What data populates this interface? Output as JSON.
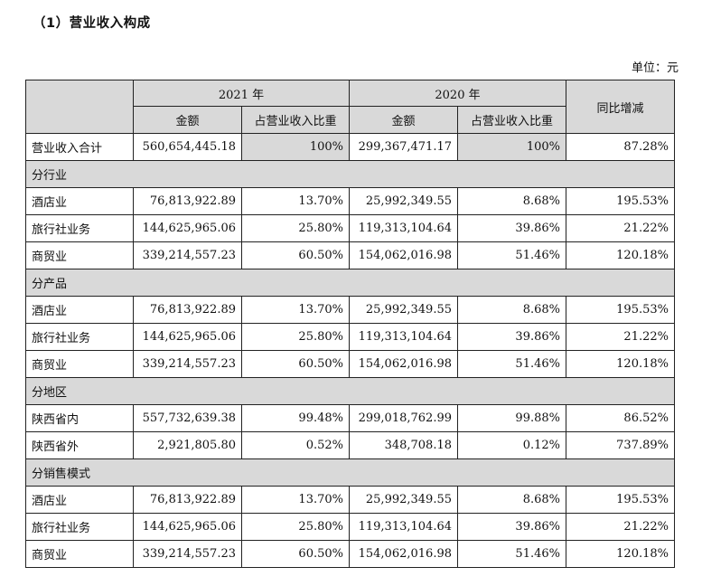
{
  "title": "（1）营业收入构成",
  "unit": "单位：元",
  "header": {
    "year_2021": "2021 年",
    "year_2020": "2020 年",
    "amount": "金额",
    "share": "占营业收入比重",
    "yoy": "同比增减"
  },
  "total": {
    "label": "营业收入合计",
    "amount_2021": "560,654,445.18",
    "share_2021": "100%",
    "amount_2020": "299,367,471.17",
    "share_2020": "100%",
    "yoy": "87.28%"
  },
  "sections": [
    {
      "title": "分行业",
      "rows": [
        {
          "label": "酒店业",
          "amount_2021": "76,813,922.89",
          "share_2021": "13.70%",
          "amount_2020": "25,992,349.55",
          "share_2020": "8.68%",
          "yoy": "195.53%"
        },
        {
          "label": "旅行社业务",
          "amount_2021": "144,625,965.06",
          "share_2021": "25.80%",
          "amount_2020": "119,313,104.64",
          "share_2020": "39.86%",
          "yoy": "21.22%"
        },
        {
          "label": "商贸业",
          "amount_2021": "339,214,557.23",
          "share_2021": "60.50%",
          "amount_2020": "154,062,016.98",
          "share_2020": "51.46%",
          "yoy": "120.18%"
        }
      ]
    },
    {
      "title": "分产品",
      "rows": [
        {
          "label": "酒店业",
          "amount_2021": "76,813,922.89",
          "share_2021": "13.70%",
          "amount_2020": "25,992,349.55",
          "share_2020": "8.68%",
          "yoy": "195.53%"
        },
        {
          "label": "旅行社业务",
          "amount_2021": "144,625,965.06",
          "share_2021": "25.80%",
          "amount_2020": "119,313,104.64",
          "share_2020": "39.86%",
          "yoy": "21.22%"
        },
        {
          "label": "商贸业",
          "amount_2021": "339,214,557.23",
          "share_2021": "60.50%",
          "amount_2020": "154,062,016.98",
          "share_2020": "51.46%",
          "yoy": "120.18%"
        }
      ]
    },
    {
      "title": "分地区",
      "rows": [
        {
          "label": "陕西省内",
          "amount_2021": "557,732,639.38",
          "share_2021": "99.48%",
          "amount_2020": "299,018,762.99",
          "share_2020": "99.88%",
          "yoy": "86.52%"
        },
        {
          "label": "陕西省外",
          "amount_2021": "2,921,805.80",
          "share_2021": "0.52%",
          "amount_2020": "348,708.18",
          "share_2020": "0.12%",
          "yoy": "737.89%"
        }
      ]
    },
    {
      "title": "分销售模式",
      "rows": [
        {
          "label": "酒店业",
          "amount_2021": "76,813,922.89",
          "share_2021": "13.70%",
          "amount_2020": "25,992,349.55",
          "share_2020": "8.68%",
          "yoy": "195.53%"
        },
        {
          "label": "旅行社业务",
          "amount_2021": "144,625,965.06",
          "share_2021": "25.80%",
          "amount_2020": "119,313,104.64",
          "share_2020": "39.86%",
          "yoy": "21.22%"
        },
        {
          "label": "商贸业",
          "amount_2021": "339,214,557.23",
          "share_2021": "60.50%",
          "amount_2020": "154,062,016.98",
          "share_2020": "51.46%",
          "yoy": "120.18%"
        }
      ]
    }
  ],
  "colors": {
    "header_fill": "#d9d9d9",
    "border": "#222222"
  }
}
